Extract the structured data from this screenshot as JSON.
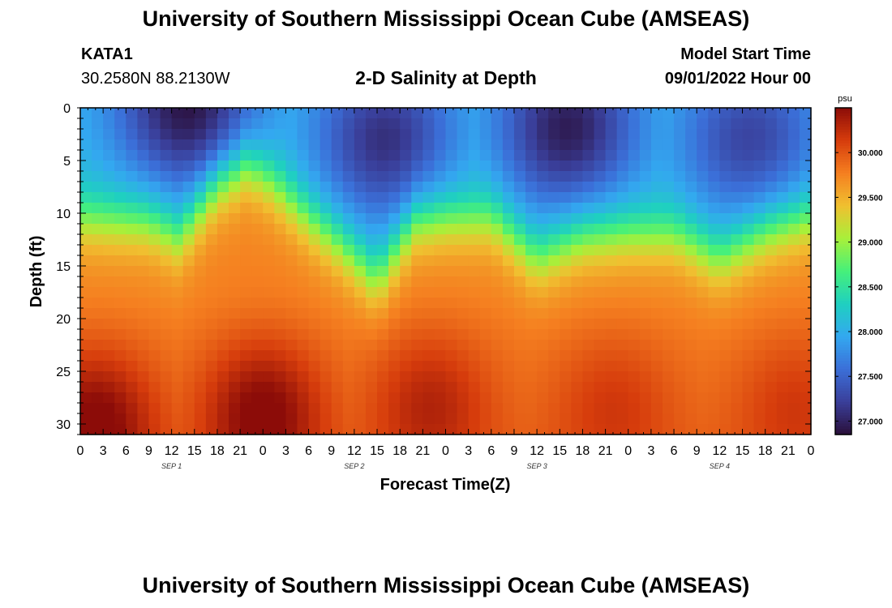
{
  "header": {
    "title": "University of Southern Mississippi Ocean Cube (AMSEAS)",
    "station_id": "KATA1",
    "coordinates": "30.2580N  88.2130W",
    "subtitle": "2-D Salinity at Depth",
    "model_start_label": "Model Start Time",
    "model_start_value": "09/01/2022 Hour 00"
  },
  "footer": {
    "title": "University of Southern Mississippi Ocean Cube (AMSEAS)"
  },
  "chart_data": {
    "type": "heatmap",
    "title": "2-D Salinity at Depth",
    "xlabel": "Forecast Time(Z)",
    "ylabel": "Depth (ft)",
    "x_tick_labels": [
      "0",
      "3",
      "6",
      "9",
      "12",
      "15",
      "18",
      "21",
      "0",
      "3",
      "6",
      "9",
      "12",
      "15",
      "18",
      "21",
      "0",
      "3",
      "6",
      "9",
      "12",
      "15",
      "18",
      "21",
      "0",
      "3",
      "6",
      "9",
      "12",
      "15",
      "18",
      "21",
      "0"
    ],
    "x_date_labels": [
      {
        "label": "SEP 1",
        "hour": 12
      },
      {
        "label": "SEP 2",
        "hour": 36
      },
      {
        "label": "SEP 3",
        "hour": 60
      },
      {
        "label": "SEP 4",
        "hour": 84
      }
    ],
    "xlim": [
      0,
      96
    ],
    "y_ticks": [
      0,
      5,
      10,
      15,
      20,
      25,
      30
    ],
    "ylim": [
      0,
      31
    ],
    "y_inverted": true,
    "colorbar": {
      "unit_label": "psu",
      "range": [
        26.85,
        30.5
      ],
      "ticks": [
        "27.000",
        "27.500",
        "28.000",
        "28.500",
        "29.000",
        "29.500",
        "30.000"
      ],
      "tick_values": [
        27.0,
        27.5,
        28.0,
        28.5,
        29.0,
        29.5,
        30.0
      ],
      "colormap": [
        "#2a0f3a",
        "#3a3f9a",
        "#3b6fd8",
        "#33a8f0",
        "#1fd0c0",
        "#46f07a",
        "#a8f03a",
        "#f0c030",
        "#f57f20",
        "#d63c0c",
        "#8c0c08"
      ]
    },
    "halocline": [
      {
        "hour": 0,
        "depth": 10.5
      },
      {
        "hour": 9,
        "depth": 11.0
      },
      {
        "hour": 13,
        "depth": 12.5
      },
      {
        "hour": 18,
        "depth": 7.5
      },
      {
        "hour": 22,
        "depth": 5.5
      },
      {
        "hour": 25,
        "depth": 7.0
      },
      {
        "hour": 30,
        "depth": 10.5
      },
      {
        "hour": 34,
        "depth": 13.0
      },
      {
        "hour": 39,
        "depth": 16.5
      },
      {
        "hour": 44,
        "depth": 11.0
      },
      {
        "hour": 48,
        "depth": 10.5
      },
      {
        "hour": 54,
        "depth": 10.5
      },
      {
        "hour": 60,
        "depth": 14.5
      },
      {
        "hour": 66,
        "depth": 12.5
      },
      {
        "hour": 72,
        "depth": 12.0
      },
      {
        "hour": 78,
        "depth": 12.0
      },
      {
        "hour": 84,
        "depth": 14.5
      },
      {
        "hour": 90,
        "depth": 12.0
      },
      {
        "hour": 96,
        "depth": 10.5
      }
    ],
    "fresh_cores": [
      {
        "hour": 14,
        "depth": 0,
        "min_psu": 26.9
      },
      {
        "hour": 40,
        "depth": 3,
        "min_psu": 27.1
      },
      {
        "hour": 64,
        "depth": 2,
        "min_psu": 26.95
      },
      {
        "hour": 88,
        "depth": 3,
        "min_psu": 27.25
      }
    ],
    "saline_cores": [
      {
        "hour": 2,
        "depth": 30,
        "max_psu": 30.45
      },
      {
        "hour": 24,
        "depth": 29,
        "max_psu": 30.45
      },
      {
        "hour": 46,
        "depth": 28,
        "max_psu": 30.2
      },
      {
        "hour": 70,
        "depth": 28,
        "max_psu": 30.05
      },
      {
        "hour": 94,
        "depth": 28,
        "max_psu": 30.05
      }
    ]
  }
}
